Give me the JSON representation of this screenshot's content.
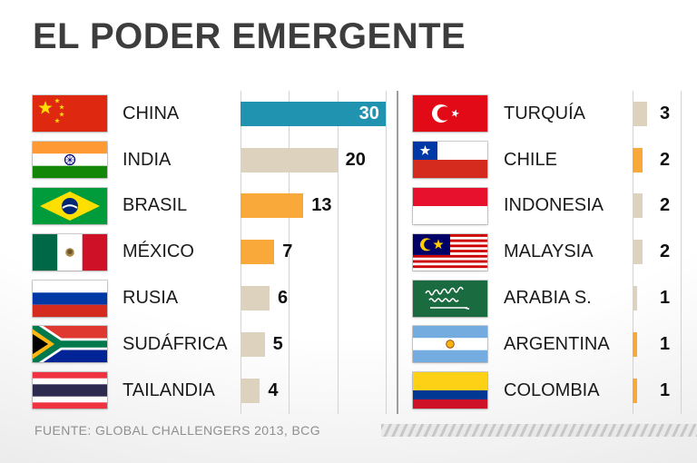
{
  "title": "EL PODER EMERGENTE",
  "source": "FUENTE: GLOBAL CHALLENGERS 2013, BCG",
  "chart_data": {
    "type": "bar",
    "orientation": "horizontal",
    "title": "EL PODER EMERGENTE",
    "source": "FUENTE: GLOBAL CHALLENGERS 2013, BCG",
    "xlim": [
      0,
      32
    ],
    "grid": true,
    "colors": {
      "blue": "#1f93af",
      "orange": "#f9a93a",
      "beige": "#ddd2bd"
    },
    "left": [
      {
        "country": "CHINA",
        "value": 30,
        "color": "blue",
        "flag": "china",
        "label_inside": true
      },
      {
        "country": "INDIA",
        "value": 20,
        "color": "beige",
        "flag": "india"
      },
      {
        "country": "BRASIL",
        "value": 13,
        "color": "orange",
        "flag": "brasil"
      },
      {
        "country": "MÉXICO",
        "value": 7,
        "color": "orange",
        "flag": "mexico"
      },
      {
        "country": "RUSIA",
        "value": 6,
        "color": "beige",
        "flag": "rusia"
      },
      {
        "country": "SUDÁFRICA",
        "value": 5,
        "color": "beige",
        "flag": "sudafrica"
      },
      {
        "country": "TAILANDIA",
        "value": 4,
        "color": "beige",
        "flag": "tailandia"
      }
    ],
    "right": [
      {
        "country": "TURQUÍA",
        "value": 3,
        "color": "beige",
        "flag": "turquia"
      },
      {
        "country": "CHILE",
        "value": 2,
        "color": "orange",
        "flag": "chile"
      },
      {
        "country": "INDONESIA",
        "value": 2,
        "color": "beige",
        "flag": "indonesia"
      },
      {
        "country": "MALAYSIA",
        "value": 2,
        "color": "beige",
        "flag": "malaysia"
      },
      {
        "country": "ARABIA S.",
        "value": 1,
        "color": "beige",
        "flag": "arabia"
      },
      {
        "country": "ARGENTINA",
        "value": 1,
        "color": "orange",
        "flag": "argentina"
      },
      {
        "country": "COLOMBIA",
        "value": 1,
        "color": "orange",
        "flag": "colombia"
      }
    ]
  }
}
